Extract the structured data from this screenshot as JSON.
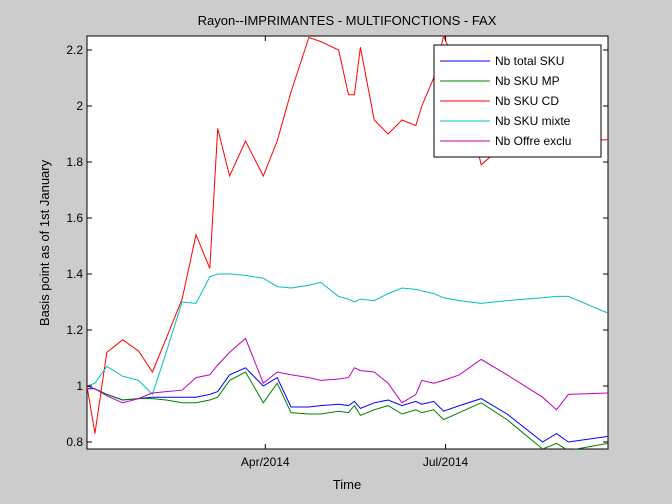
{
  "chart_data": {
    "type": "line",
    "title": "Rayon--IMPRIMANTES - MULTIFONCTIONS - FAX",
    "xlabel": "Time",
    "ylabel": "Basis point as of 1st January",
    "xlim": [
      "2014-01-01",
      "2014-09-21"
    ],
    "ylim": [
      0.775,
      2.25
    ],
    "yticks": [
      0.8,
      1,
      1.2,
      1.4,
      1.6,
      1.8,
      2,
      2.2
    ],
    "ytick_labels": [
      "0.8",
      "1",
      "1.2",
      "1.4",
      "1.6",
      "1.8",
      "2",
      "2.2"
    ],
    "xticks": [
      "2014-04-01",
      "2014-07-01"
    ],
    "xtick_labels": [
      "Apr/2014",
      "Jul/2014"
    ],
    "grid": false,
    "legend_position": "top-right",
    "series": [
      {
        "name": "Nb total SKU",
        "color": "#0000ff",
        "points": [
          [
            "2014-01-01",
            0.99
          ],
          [
            "2014-01-05",
            0.99
          ],
          [
            "2014-01-11",
            0.97
          ],
          [
            "2014-01-19",
            0.95
          ],
          [
            "2014-01-27",
            0.955
          ],
          [
            "2014-02-03",
            0.96
          ],
          [
            "2014-02-10",
            0.96
          ],
          [
            "2014-02-18",
            0.96
          ],
          [
            "2014-02-25",
            0.96
          ],
          [
            "2014-03-04",
            0.97
          ],
          [
            "2014-03-08",
            0.98
          ],
          [
            "2014-03-14",
            1.04
          ],
          [
            "2014-03-22",
            1.065
          ],
          [
            "2014-03-31",
            1.0
          ],
          [
            "2014-04-07",
            1.03
          ],
          [
            "2014-04-14",
            0.925
          ],
          [
            "2014-04-23",
            0.925
          ],
          [
            "2014-04-29",
            0.93
          ],
          [
            "2014-05-08",
            0.935
          ],
          [
            "2014-05-13",
            0.93
          ],
          [
            "2014-05-16",
            0.945
          ],
          [
            "2014-05-19",
            0.92
          ],
          [
            "2014-05-26",
            0.94
          ],
          [
            "2014-06-02",
            0.95
          ],
          [
            "2014-06-09",
            0.93
          ],
          [
            "2014-06-16",
            0.945
          ],
          [
            "2014-06-19",
            0.935
          ],
          [
            "2014-06-25",
            0.945
          ],
          [
            "2014-06-30",
            0.91
          ],
          [
            "2014-07-08",
            0.93
          ],
          [
            "2014-07-19",
            0.955
          ],
          [
            "2014-08-01",
            0.9
          ],
          [
            "2014-08-19",
            0.8
          ],
          [
            "2014-08-26",
            0.83
          ],
          [
            "2014-09-01",
            0.8
          ],
          [
            "2014-09-21",
            0.82
          ]
        ]
      },
      {
        "name": "Nb SKU MP",
        "color": "#008000",
        "points": [
          [
            "2014-01-01",
            1.0
          ],
          [
            "2014-01-05",
            0.99
          ],
          [
            "2014-01-11",
            0.97
          ],
          [
            "2014-01-19",
            0.95
          ],
          [
            "2014-01-27",
            0.955
          ],
          [
            "2014-02-03",
            0.955
          ],
          [
            "2014-02-10",
            0.95
          ],
          [
            "2014-02-18",
            0.94
          ],
          [
            "2014-02-25",
            0.94
          ],
          [
            "2014-03-04",
            0.95
          ],
          [
            "2014-03-08",
            0.96
          ],
          [
            "2014-03-14",
            1.02
          ],
          [
            "2014-03-22",
            1.05
          ],
          [
            "2014-03-31",
            0.94
          ],
          [
            "2014-04-07",
            1.01
          ],
          [
            "2014-04-14",
            0.905
          ],
          [
            "2014-04-23",
            0.9
          ],
          [
            "2014-04-29",
            0.9
          ],
          [
            "2014-05-08",
            0.91
          ],
          [
            "2014-05-13",
            0.905
          ],
          [
            "2014-05-16",
            0.93
          ],
          [
            "2014-05-19",
            0.895
          ],
          [
            "2014-05-26",
            0.915
          ],
          [
            "2014-06-02",
            0.93
          ],
          [
            "2014-06-09",
            0.9
          ],
          [
            "2014-06-16",
            0.915
          ],
          [
            "2014-06-19",
            0.905
          ],
          [
            "2014-06-25",
            0.915
          ],
          [
            "2014-06-30",
            0.88
          ],
          [
            "2014-07-08",
            0.905
          ],
          [
            "2014-07-19",
            0.94
          ],
          [
            "2014-08-01",
            0.88
          ],
          [
            "2014-08-19",
            0.775
          ],
          [
            "2014-08-26",
            0.795
          ],
          [
            "2014-09-01",
            0.77
          ],
          [
            "2014-09-21",
            0.795
          ]
        ]
      },
      {
        "name": "Nb SKU CD",
        "color": "#ff0000",
        "points": [
          [
            "2014-01-01",
            1.0
          ],
          [
            "2014-01-05",
            0.83
          ],
          [
            "2014-01-11",
            1.12
          ],
          [
            "2014-01-19",
            1.165
          ],
          [
            "2014-01-27",
            1.125
          ],
          [
            "2014-02-03",
            1.05
          ],
          [
            "2014-02-10",
            1.17
          ],
          [
            "2014-02-18",
            1.31
          ],
          [
            "2014-02-25",
            1.54
          ],
          [
            "2014-03-04",
            1.42
          ],
          [
            "2014-03-08",
            1.92
          ],
          [
            "2014-03-14",
            1.75
          ],
          [
            "2014-03-22",
            1.875
          ],
          [
            "2014-03-31",
            1.75
          ],
          [
            "2014-04-07",
            1.875
          ],
          [
            "2014-04-14",
            2.05
          ],
          [
            "2014-04-23",
            2.245
          ],
          [
            "2014-04-29",
            2.23
          ],
          [
            "2014-05-08",
            2.2
          ],
          [
            "2014-05-13",
            2.04
          ],
          [
            "2014-05-16",
            2.04
          ],
          [
            "2014-05-19",
            2.21
          ],
          [
            "2014-05-26",
            1.95
          ],
          [
            "2014-06-02",
            1.9
          ],
          [
            "2014-06-09",
            1.95
          ],
          [
            "2014-06-16",
            1.93
          ],
          [
            "2014-06-19",
            2.0
          ],
          [
            "2014-06-25",
            2.1
          ],
          [
            "2014-06-30",
            2.25
          ],
          [
            "2014-07-08",
            2.12
          ],
          [
            "2014-07-19",
            1.79
          ],
          [
            "2014-08-01",
            1.87
          ],
          [
            "2014-08-19",
            1.87
          ],
          [
            "2014-08-26",
            1.88
          ],
          [
            "2014-09-01",
            1.87
          ],
          [
            "2014-09-21",
            1.88
          ]
        ]
      },
      {
        "name": "Nb SKU mixte",
        "color": "#00bfbf",
        "points": [
          [
            "2014-01-01",
            1.0
          ],
          [
            "2014-01-05",
            1.01
          ],
          [
            "2014-01-11",
            1.07
          ],
          [
            "2014-01-19",
            1.035
          ],
          [
            "2014-01-27",
            1.02
          ],
          [
            "2014-02-03",
            0.97
          ],
          [
            "2014-02-10",
            1.12
          ],
          [
            "2014-02-18",
            1.3
          ],
          [
            "2014-02-25",
            1.295
          ],
          [
            "2014-03-04",
            1.39
          ],
          [
            "2014-03-08",
            1.4
          ],
          [
            "2014-03-14",
            1.4
          ],
          [
            "2014-03-22",
            1.395
          ],
          [
            "2014-03-31",
            1.385
          ],
          [
            "2014-04-07",
            1.355
          ],
          [
            "2014-04-14",
            1.35
          ],
          [
            "2014-04-23",
            1.36
          ],
          [
            "2014-04-29",
            1.37
          ],
          [
            "2014-05-08",
            1.32
          ],
          [
            "2014-05-13",
            1.31
          ],
          [
            "2014-05-16",
            1.3
          ],
          [
            "2014-05-19",
            1.31
          ],
          [
            "2014-05-26",
            1.305
          ],
          [
            "2014-06-02",
            1.33
          ],
          [
            "2014-06-09",
            1.35
          ],
          [
            "2014-06-16",
            1.345
          ],
          [
            "2014-06-19",
            1.34
          ],
          [
            "2014-06-25",
            1.33
          ],
          [
            "2014-06-30",
            1.315
          ],
          [
            "2014-07-08",
            1.305
          ],
          [
            "2014-07-19",
            1.295
          ],
          [
            "2014-08-01",
            1.305
          ],
          [
            "2014-08-19",
            1.315
          ],
          [
            "2014-08-26",
            1.32
          ],
          [
            "2014-09-01",
            1.32
          ],
          [
            "2014-09-21",
            1.26
          ]
        ]
      },
      {
        "name": "Nb Offre exclu",
        "color": "#bf00bf",
        "points": [
          [
            "2014-01-01",
            1.0
          ],
          [
            "2014-01-05",
            0.99
          ],
          [
            "2014-01-11",
            0.965
          ],
          [
            "2014-01-19",
            0.94
          ],
          [
            "2014-01-27",
            0.955
          ],
          [
            "2014-02-03",
            0.975
          ],
          [
            "2014-02-10",
            0.98
          ],
          [
            "2014-02-18",
            0.985
          ],
          [
            "2014-02-25",
            1.03
          ],
          [
            "2014-03-04",
            1.04
          ],
          [
            "2014-03-08",
            1.075
          ],
          [
            "2014-03-14",
            1.12
          ],
          [
            "2014-03-22",
            1.17
          ],
          [
            "2014-03-31",
            1.01
          ],
          [
            "2014-04-07",
            1.05
          ],
          [
            "2014-04-14",
            1.04
          ],
          [
            "2014-04-23",
            1.03
          ],
          [
            "2014-04-29",
            1.02
          ],
          [
            "2014-05-08",
            1.025
          ],
          [
            "2014-05-13",
            1.03
          ],
          [
            "2014-05-16",
            1.065
          ],
          [
            "2014-05-19",
            1.055
          ],
          [
            "2014-05-26",
            1.05
          ],
          [
            "2014-06-02",
            1.01
          ],
          [
            "2014-06-09",
            0.94
          ],
          [
            "2014-06-16",
            0.97
          ],
          [
            "2014-06-19",
            1.02
          ],
          [
            "2014-06-25",
            1.01
          ],
          [
            "2014-06-30",
            1.02
          ],
          [
            "2014-07-08",
            1.04
          ],
          [
            "2014-07-19",
            1.095
          ],
          [
            "2014-08-01",
            1.04
          ],
          [
            "2014-08-19",
            0.96
          ],
          [
            "2014-08-26",
            0.915
          ],
          [
            "2014-09-01",
            0.97
          ],
          [
            "2014-09-21",
            0.975
          ]
        ]
      }
    ]
  }
}
